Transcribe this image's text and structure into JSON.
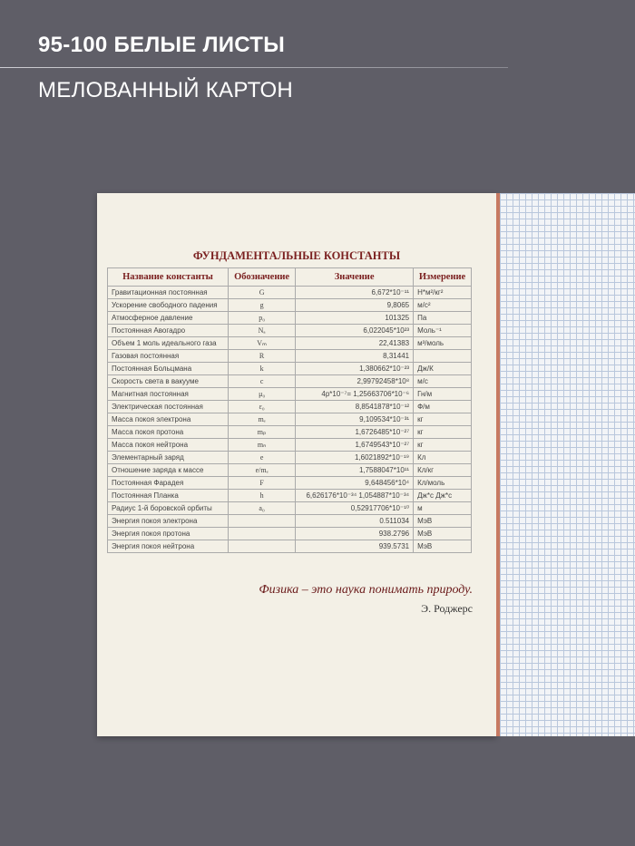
{
  "header": {
    "line1": "95-100 БЕЛЫЕ ЛИСТЫ",
    "line2": "МЕЛОВАННЫЙ КАРТОН"
  },
  "notebook": {
    "title": "ФУНДАМЕНТАЛЬНЫЕ КОНСТАНТЫ",
    "columns": [
      "Название константы",
      "Обозначение",
      "Значение",
      "Измерение"
    ],
    "rows": [
      [
        "Гравитационная постоянная",
        "G",
        "6,672*10⁻¹¹",
        "Н*м²/кг²"
      ],
      [
        "Ускорение свободного падения",
        "g",
        "9,8065",
        "м/с²"
      ],
      [
        "Атмосферное давление",
        "p₀",
        "101325",
        "Па"
      ],
      [
        "Постоянная Авогадро",
        "Nₐ",
        "6,022045*10²³",
        "Моль⁻¹"
      ],
      [
        "Объем 1 моль идеального газа",
        "Vₘ",
        "22,41383",
        "м³/моль"
      ],
      [
        "Газовая постоянная",
        "R",
        "8,31441",
        ""
      ],
      [
        "Постоянная Больцмана",
        "k",
        "1,380662*10⁻²³",
        "Дж/К"
      ],
      [
        "Скорость света в вакууме",
        "c",
        "2,99792458*10⁸",
        "м/с"
      ],
      [
        "Магнитная постоянная",
        "μ₀",
        "4p*10⁻⁷= 1,25663706*10⁻⁶",
        "Гн/м"
      ],
      [
        "Электрическая постоянная",
        "ε₀",
        "8,8541878*10⁻¹²",
        "Ф/м"
      ],
      [
        "Масса покоя электрона",
        "mₑ",
        "9,109534*10⁻³¹",
        "кг"
      ],
      [
        "Масса покоя протона",
        "mₚ",
        "1,6726485*10⁻²⁷",
        "кг"
      ],
      [
        "Масса покоя нейтрона",
        "mₙ",
        "1,6749543*10⁻²⁷",
        "кг"
      ],
      [
        "Элементарный заряд",
        "e",
        "1,6021892*10⁻¹⁹",
        "Кл"
      ],
      [
        "Отношение заряда к массе",
        "e/mₑ",
        "1,7588047*10¹¹",
        "Кл/кг"
      ],
      [
        "Постоянная Фарадея",
        "F",
        "9,648456*10⁴",
        "Кл/моль"
      ],
      [
        "Постоянная Планка",
        "h",
        "6,626176*10⁻³⁴ 1,054887*10⁻³⁴",
        "Дж*с Дж*с"
      ],
      [
        "Радиус 1-й боровской орбиты",
        "a₀",
        "0,52917706*10⁻¹⁰",
        "м"
      ],
      [
        "Энергия покоя электрона",
        "",
        "0.511034",
        "МэВ"
      ],
      [
        "Энергия покоя протона",
        "",
        "938.2796",
        "МэВ"
      ],
      [
        "Энергия покоя нейтрона",
        "",
        "939.5731",
        "МэВ"
      ]
    ],
    "quote": "Физика – это наука понимать природу.",
    "author": "Э. Роджерс"
  }
}
